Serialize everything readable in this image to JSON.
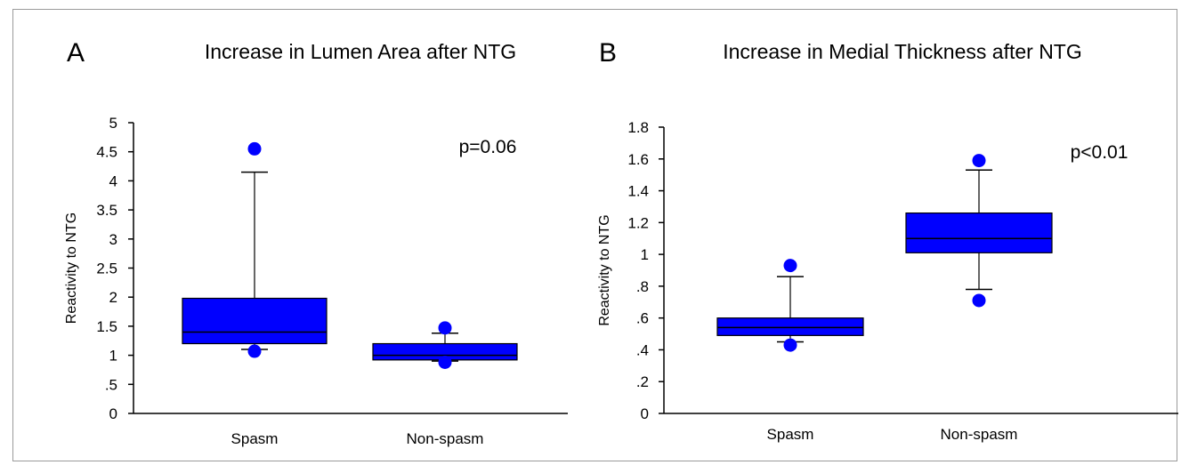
{
  "chart_data": [
    {
      "panel_label": "A",
      "title": "Increase in Lumen Area after NTG",
      "type": "box",
      "ylabel": "Reactivity to NTG",
      "xlabel": "",
      "ylim": [
        0,
        5
      ],
      "yticks": [
        0,
        0.5,
        1,
        1.5,
        2,
        2.5,
        3,
        3.5,
        4,
        4.5,
        5
      ],
      "ytick_labels": [
        "0",
        ".5",
        "1",
        "1.5",
        "2",
        "2.5",
        "3",
        "3.5",
        "4",
        "4.5",
        "5"
      ],
      "annotation": "p=0.06",
      "categories": [
        "Spasm",
        "Non-spasm"
      ],
      "boxes": [
        {
          "category": "Spasm",
          "whisker_low": 1.1,
          "q1": 1.2,
          "median": 1.4,
          "q3": 1.98,
          "whisker_high": 4.15,
          "outliers": [
            1.07,
            4.55
          ]
        },
        {
          "category": "Non-spasm",
          "whisker_low": 0.9,
          "q1": 0.92,
          "median": 1.0,
          "q3": 1.2,
          "whisker_high": 1.38,
          "outliers": [
            0.88,
            1.47
          ]
        }
      ],
      "box_color": "#0000ff",
      "grid": false
    },
    {
      "panel_label": "B",
      "title": "Increase in Medial Thickness after NTG",
      "type": "box",
      "ylabel": "Reactivity to NTG",
      "xlabel": "",
      "ylim": [
        0,
        1.8
      ],
      "yticks": [
        0,
        0.2,
        0.4,
        0.6,
        0.8,
        1.0,
        1.2,
        1.4,
        1.6,
        1.8
      ],
      "ytick_labels": [
        "0",
        ".2",
        ".4",
        ".6",
        ".8",
        "1",
        "1.2",
        "1.4",
        "1.6",
        "1.8"
      ],
      "annotation": "p<0.01",
      "categories": [
        "Spasm",
        "Non-spasm"
      ],
      "boxes": [
        {
          "category": "Spasm",
          "whisker_low": 0.45,
          "q1": 0.49,
          "median": 0.54,
          "q3": 0.6,
          "whisker_high": 0.86,
          "outliers": [
            0.43,
            0.93
          ]
        },
        {
          "category": "Non-spasm",
          "whisker_low": 0.78,
          "q1": 1.01,
          "median": 1.1,
          "q3": 1.26,
          "whisker_high": 1.53,
          "outliers": [
            0.71,
            1.59
          ]
        }
      ],
      "box_color": "#0000ff",
      "grid": false
    }
  ]
}
